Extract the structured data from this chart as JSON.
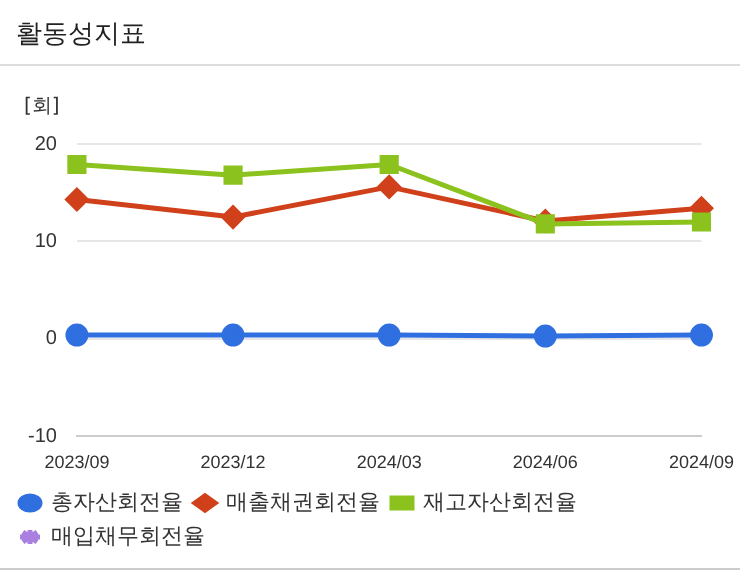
{
  "chart_data": {
    "type": "line",
    "title": "활동성지표",
    "ylabel": "[회]",
    "categories": [
      "2023/09",
      "2023/12",
      "2024/03",
      "2024/06",
      "2024/09"
    ],
    "series": [
      {
        "name": "총자산회전율",
        "color": "#2f6fe0",
        "marker": "circle",
        "values": [
          0.4,
          0.4,
          0.4,
          0.3,
          0.4
        ]
      },
      {
        "name": "매출채권회전율",
        "color": "#d0401a",
        "marker": "diamond",
        "values": [
          14.3,
          12.5,
          15.6,
          12.1,
          13.4
        ]
      },
      {
        "name": "재고자산회전율",
        "color": "#8cc21e",
        "marker": "square",
        "values": [
          17.9,
          16.8,
          17.9,
          11.8,
          12.0
        ]
      },
      {
        "name": "매입채무회전율",
        "color": "#a97fe0",
        "marker": "star",
        "values": [
          null,
          null,
          null,
          null,
          null
        ]
      }
    ],
    "ylim": [
      -10,
      20
    ],
    "yticks": [
      -10,
      0,
      10,
      20
    ],
    "grid": "y",
    "legend": "bottom"
  }
}
